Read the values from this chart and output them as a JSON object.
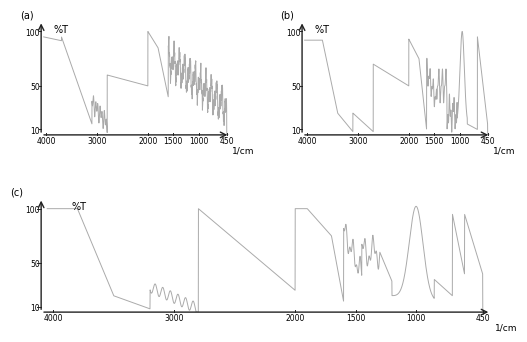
{
  "title_a": "(a)",
  "title_b": "(b)",
  "title_c": "(c)",
  "ylabel": "%T",
  "xlabel": "1/cm",
  "yticks": [
    10,
    50,
    100
  ],
  "xticks": [
    4000,
    3000,
    2000,
    1500,
    1000,
    450
  ],
  "xlim_left": 4100,
  "xlim_right": 380,
  "ylim": [
    5,
    110
  ],
  "line_color": "#aaaaaa",
  "arrow_color": "#222222",
  "background": "#ffffff",
  "tick_color": "#333333",
  "spine_color": "#333333"
}
